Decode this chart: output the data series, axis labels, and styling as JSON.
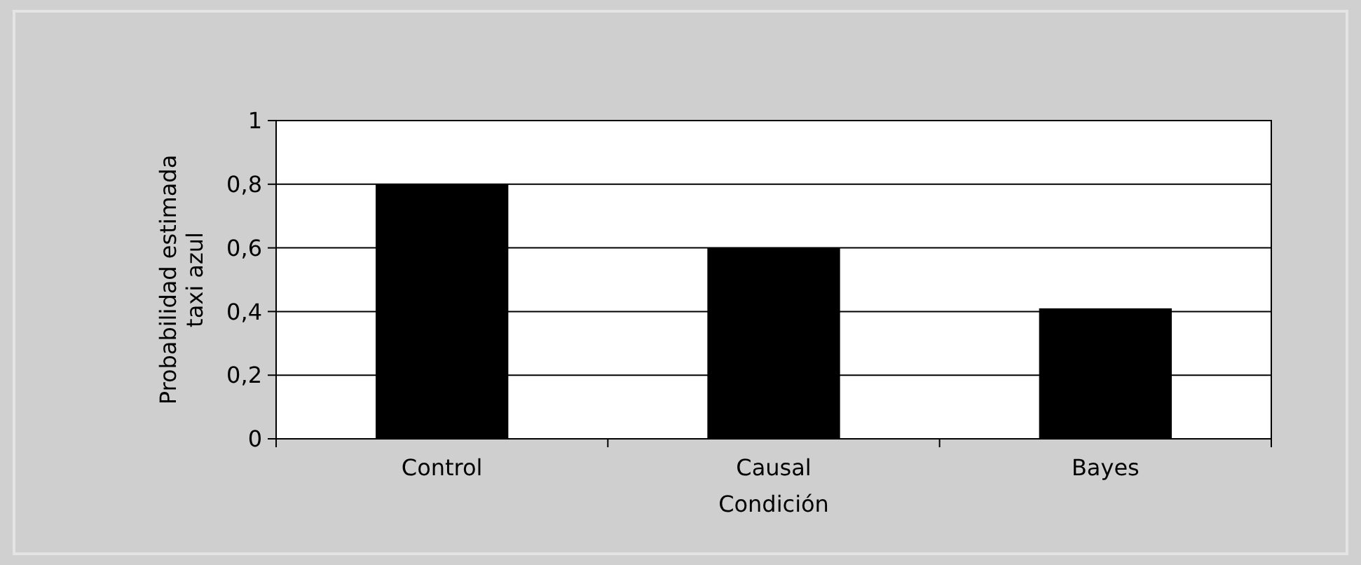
{
  "chart_data": {
    "type": "bar",
    "xlabel": "Condición",
    "ylabel": "Probabilidad estimada\ntaxi azul",
    "categories": [
      "Control",
      "Causal",
      "Bayes"
    ],
    "values": [
      0.8,
      0.6,
      0.41
    ],
    "color": "#000000",
    "ylim": [
      0,
      1
    ],
    "yticks": [
      0,
      {
        "value": 0.2,
        "label": "0,2"
      },
      {
        "value": 0.4,
        "label": "0,4"
      },
      {
        "value": 0.6,
        "label": "0,6"
      },
      {
        "value": 0.8,
        "label": "0,8"
      },
      1
    ],
    "grid": "y"
  }
}
